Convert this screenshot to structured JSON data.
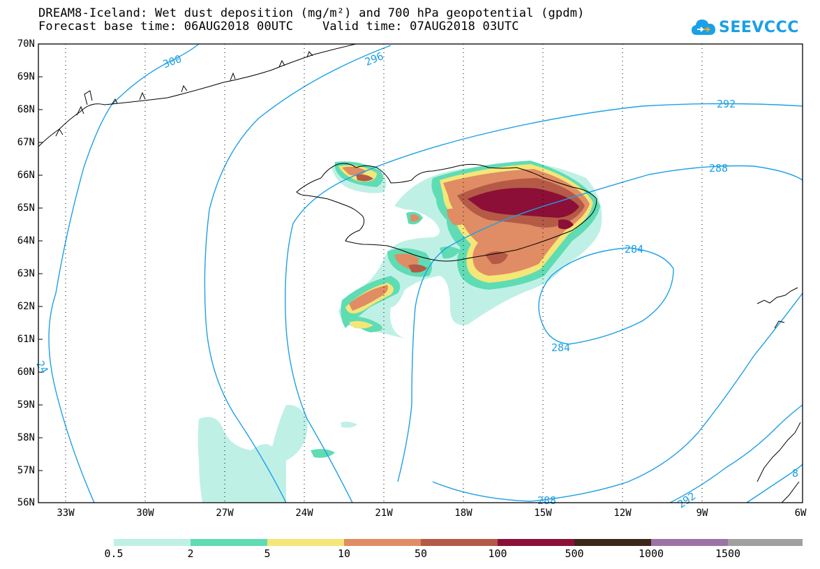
{
  "title_line1": "DREAM8-Iceland: Wet dust deposition (mg/m²) and 700 hPa geopotential (gpdm)",
  "title_line2": "Forecast base time: 06AUG2018 00UTC    Valid time: 07AUG2018 03UTC",
  "logo_text": "SEEVCCC",
  "lat_labels": [
    "70N",
    "69N",
    "68N",
    "67N",
    "66N",
    "65N",
    "64N",
    "63N",
    "62N",
    "61N",
    "60N",
    "59N",
    "58N",
    "57N",
    "56N"
  ],
  "lon_labels": [
    "33W",
    "30W",
    "27W",
    "24W",
    "21W",
    "18W",
    "15W",
    "12W",
    "9W",
    "6W"
  ],
  "contour_labels": [
    "300",
    "296",
    "292",
    "288",
    "284",
    "284",
    "288",
    "292",
    "24",
    "8"
  ],
  "legend": {
    "labels": [
      "0.5",
      "2",
      "5",
      "10",
      "50",
      "100",
      "500",
      "1000",
      "1500"
    ],
    "colors": [
      "#bff0e6",
      "#5fdcb4",
      "#f5e678",
      "#e08c64",
      "#b45a46",
      "#8c0f37",
      "#3c2819",
      "#9b73a5",
      "#a0a0a0"
    ]
  },
  "contour_color": "#1ea0e6"
}
